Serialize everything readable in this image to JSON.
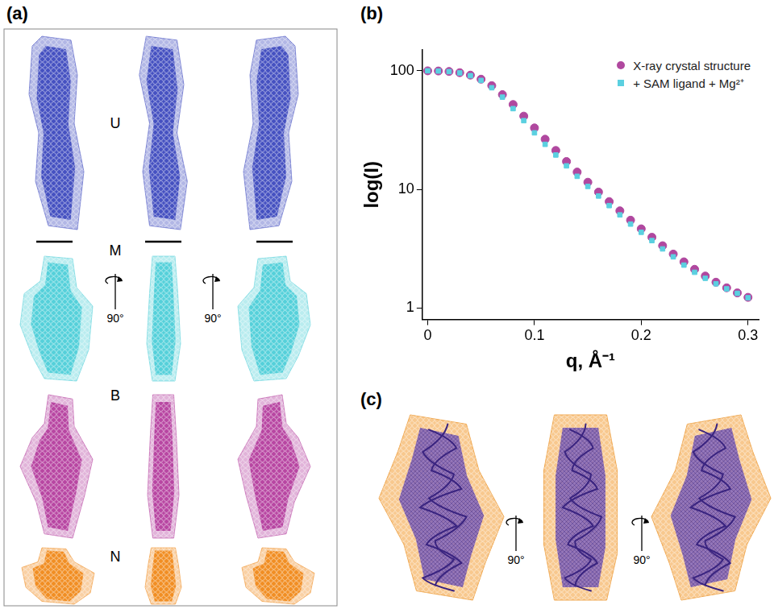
{
  "panel_labels": [
    "(a)",
    "(b)",
    "(c)"
  ],
  "panel_a": {
    "rows": [
      {
        "label": "U",
        "color": "#3f4bbf"
      },
      {
        "label": "M",
        "color": "#4fcfd8"
      },
      {
        "label": "B",
        "color": "#b5409f"
      },
      {
        "label": "N",
        "color": "#f08a1c"
      }
    ],
    "rotation_labels": [
      "90°",
      "90°"
    ]
  },
  "panel_c": {
    "rotation_labels": [
      "90°",
      "90°"
    ]
  },
  "chart_data": {
    "type": "scatter",
    "x_label": "q, Å⁻¹",
    "y_label": "log(I)",
    "log": "y",
    "grid": false,
    "legend": "top right",
    "xlim": [
      -0.005,
      0.31
    ],
    "xticks": [
      0,
      0.1,
      0.2,
      0.3
    ],
    "ylim": [
      0.8,
      150
    ],
    "yticks": [
      1,
      10,
      100
    ],
    "x": [
      0,
      0.01,
      0.02,
      0.03,
      0.04,
      0.05,
      0.06,
      0.07,
      0.08,
      0.09,
      0.1,
      0.11,
      0.12,
      0.13,
      0.14,
      0.15,
      0.16,
      0.17,
      0.18,
      0.19,
      0.2,
      0.21,
      0.22,
      0.23,
      0.24,
      0.25,
      0.26,
      0.27,
      0.28,
      0.29,
      0.3
    ],
    "series": [
      {
        "name": "X-ray crystal structure",
        "color": "#b0489f",
        "marker": "circle",
        "values": [
          100,
          99.7,
          98.8,
          96.5,
          92,
          85,
          75,
          63,
          52,
          41.5,
          33,
          26.5,
          21.3,
          17.2,
          14,
          11.5,
          9.5,
          7.9,
          6.6,
          5.5,
          4.65,
          3.95,
          3.35,
          2.85,
          2.45,
          2.12,
          1.86,
          1.65,
          1.48,
          1.34,
          1.23
        ]
      },
      {
        "name": "+ SAM ligand + Mg²⁺",
        "color": "#5bd0e0",
        "marker": "square",
        "values": [
          100,
          99.6,
          98.5,
          96,
          91,
          83,
          72,
          60,
          48,
          38,
          30,
          24,
          19.5,
          15.8,
          12.9,
          10.6,
          8.8,
          7.3,
          6.1,
          5.1,
          4.35,
          3.7,
          3.15,
          2.7,
          2.3,
          2.0,
          1.78,
          1.6,
          1.45,
          1.33,
          1.22
        ]
      }
    ]
  }
}
